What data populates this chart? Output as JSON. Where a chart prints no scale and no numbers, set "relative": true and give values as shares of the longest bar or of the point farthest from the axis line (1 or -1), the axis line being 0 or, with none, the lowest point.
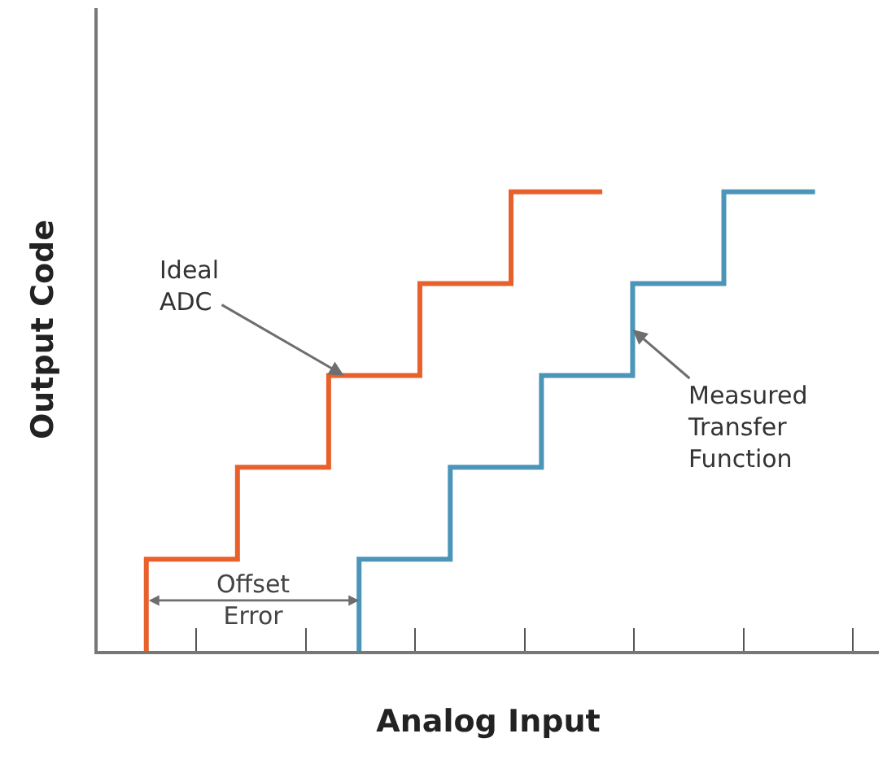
{
  "chart_data": {
    "type": "step",
    "relative": true,
    "xlabel": "Analog Input",
    "ylabel": "Output Code",
    "categories": [
      null,
      null,
      null,
      null,
      null,
      null,
      null,
      null,
      null,
      null,
      null,
      null,
      null,
      null,
      null,
      null,
      null,
      null,
      null,
      null,
      null,
      null,
      null
    ],
    "tick_labels": false,
    "marker": "none",
    "line_style": "solid",
    "series": [
      {
        "color": "#e8602c",
        "values": [
          0,
          0.2,
          0.2,
          0.2,
          0.4,
          0.4,
          0.4,
          0.6,
          0.6,
          0.6,
          0.8,
          0.8,
          0.8,
          1,
          1,
          1,
          null,
          null,
          null,
          null,
          null,
          null,
          null
        ]
      },
      {
        "color": "#4a95b8",
        "values": [
          null,
          null,
          null,
          null,
          null,
          null,
          null,
          0,
          0.2,
          0.2,
          0.2,
          0.4,
          0.4,
          0.4,
          0.6,
          0.6,
          0.6,
          0.8,
          0.8,
          0.8,
          1,
          1,
          1
        ]
      }
    ],
    "annotations": [
      "Ideal\nADC",
      "Measured\nTransfer\nFunction",
      "Offset\nError"
    ]
  }
}
